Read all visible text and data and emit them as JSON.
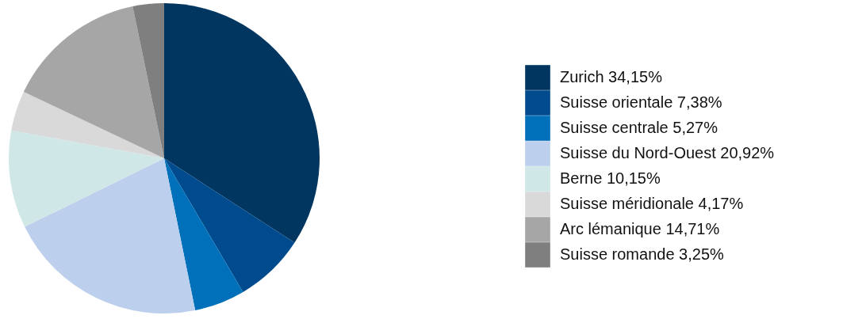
{
  "chart_data": {
    "type": "pie",
    "categories": [
      "Zurich",
      "Suisse orientale",
      "Suisse centrale",
      "Suisse du Nord-Ouest",
      "Berne",
      "Suisse méridionale",
      "Arc lémanique",
      "Suisse romande"
    ],
    "values": [
      34.15,
      7.38,
      5.27,
      20.92,
      10.15,
      4.17,
      14.71,
      3.25
    ],
    "value_labels": [
      "34,15%",
      "7,38%",
      "5,27%",
      "20,92%",
      "10,15%",
      "4,17%",
      "14,71%",
      "3,25%"
    ],
    "colors": [
      "#003660",
      "#004b8d",
      "#0070bb",
      "#bccfec",
      "#cfe7e7",
      "#d9d9d9",
      "#a6a6a6",
      "#7f7f7f"
    ],
    "legend": "right"
  }
}
